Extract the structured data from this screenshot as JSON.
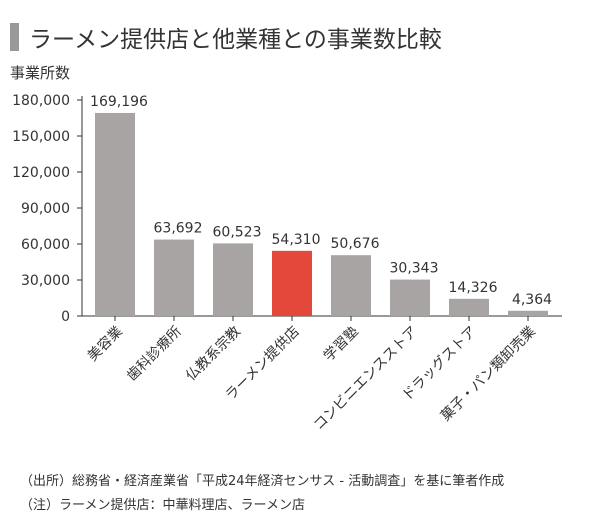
{
  "title": "ラーメン提供店と他業種との事業数比較",
  "notes": {
    "source": "（出所）総務省・経済産業省「平成24年経済センサス - 活動調査」を基に筆者作成",
    "remark": "（注）ラーメン提供店：中華料理店、ラーメン店"
  },
  "colors": {
    "bar_default": "#a9a4a4",
    "bar_highlight": "#e4483a",
    "title_marker": "#999999",
    "axis": "#333333"
  },
  "chart_data": {
    "type": "bar",
    "title": "ラーメン提供店と他業種との事業数比較",
    "ylabel": "事業所数",
    "xlabel": "",
    "categories": [
      "美容業",
      "歯科診療所",
      "仏教系宗教",
      "ラーメン提供店",
      "学習塾",
      "コンビニエンスストア",
      "ドラッグストア",
      "菓子・パン類卸売業"
    ],
    "values": [
      169196,
      63692,
      60523,
      54310,
      50676,
      30343,
      14326,
      4364
    ],
    "value_labels": [
      "169,196",
      "63,692",
      "60,523",
      "54,310",
      "50,676",
      "30,343",
      "14,326",
      "4,364"
    ],
    "highlight_category": "ラーメン提供店",
    "ylim": [
      0,
      180000
    ],
    "yticks": [
      0,
      30000,
      60000,
      90000,
      120000,
      150000,
      180000
    ],
    "ytick_labels": [
      "0",
      "30,000",
      "60,000",
      "90,000",
      "120,000",
      "150,000",
      "180,000"
    ],
    "grid": false,
    "legend": "none"
  }
}
